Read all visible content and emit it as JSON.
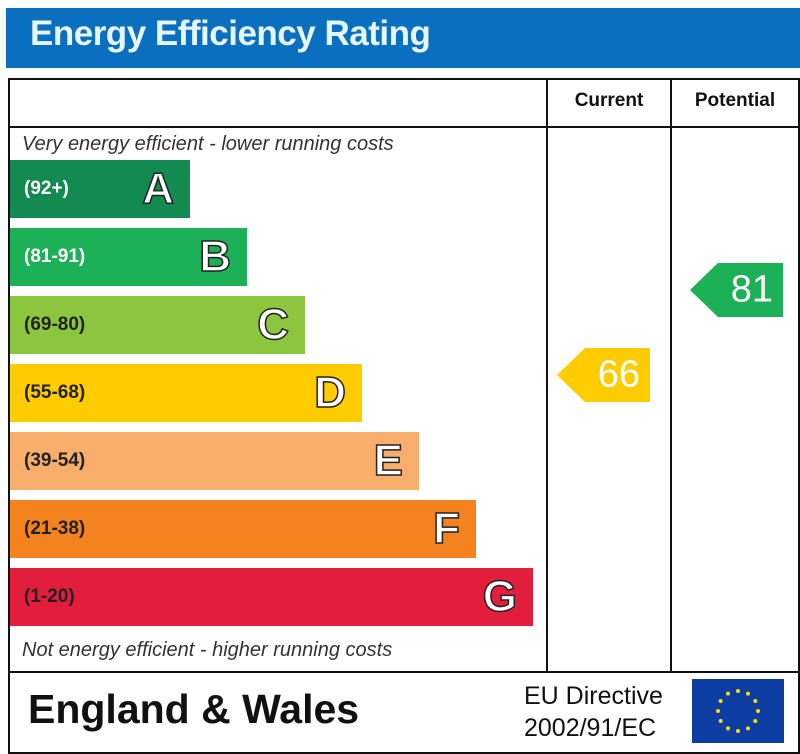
{
  "header": {
    "title": "Energy Efficiency Rating"
  },
  "columns": {
    "current": "Current",
    "potential": "Potential"
  },
  "notes": {
    "top": "Very energy efficient - lower running costs",
    "bottom": "Not energy efficient - higher running costs"
  },
  "footer": {
    "country": "England & Wales",
    "directive_line1": "EU Directive",
    "directive_line2": "2002/91/EC"
  },
  "chart_data": {
    "type": "bar",
    "bands": [
      {
        "letter": "A",
        "range": "(92+)",
        "color": "#138a50",
        "range_color": "#ffffff"
      },
      {
        "letter": "B",
        "range": "(81-91)",
        "color": "#1db157",
        "range_color": "#ffffff"
      },
      {
        "letter": "C",
        "range": "(69-80)",
        "color": "#8cc63f",
        "range_color": "#222222"
      },
      {
        "letter": "D",
        "range": "(55-68)",
        "color": "#ffcc00",
        "range_color": "#222222"
      },
      {
        "letter": "E",
        "range": "(39-54)",
        "color": "#f7ae6a",
        "range_color": "#222222"
      },
      {
        "letter": "F",
        "range": "(21-38)",
        "color": "#f3821f",
        "range_color": "#222222"
      },
      {
        "letter": "G",
        "range": "(1-20)",
        "color": "#e31d3c",
        "range_color": "#222222"
      }
    ],
    "current": {
      "value": 66,
      "band": "D",
      "color": "#ffcc00"
    },
    "potential": {
      "value": 81,
      "band": "B",
      "color": "#1db157"
    }
  }
}
